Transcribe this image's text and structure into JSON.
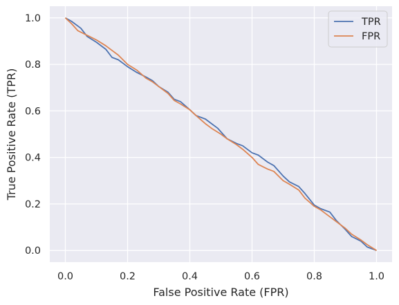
{
  "chart_data": {
    "type": "line",
    "title": "",
    "xlabel": "False Positive Rate (FPR)",
    "ylabel": "True Positive Rate (TPR)",
    "xlim": [
      -0.05,
      1.05
    ],
    "ylim": [
      -0.05,
      1.05
    ],
    "x_ticks": [
      0.0,
      0.2,
      0.4,
      0.6,
      0.8,
      1.0
    ],
    "y_ticks": [
      0.0,
      0.2,
      0.4,
      0.6,
      0.8,
      1.0
    ],
    "x_tick_labels": [
      "0.0",
      "0.2",
      "0.4",
      "0.6",
      "0.8",
      "1.0"
    ],
    "y_tick_labels": [
      "0.0",
      "0.2",
      "0.4",
      "0.6",
      "0.8",
      "1.0"
    ],
    "grid": true,
    "legend_position": "top-right",
    "background": "#eaeaf2",
    "series": [
      {
        "name": "TPR",
        "color": "#4c72b0",
        "x": [
          0.0,
          0.02,
          0.05,
          0.07,
          0.1,
          0.13,
          0.15,
          0.17,
          0.2,
          0.23,
          0.26,
          0.28,
          0.3,
          0.33,
          0.35,
          0.37,
          0.4,
          0.42,
          0.45,
          0.47,
          0.49,
          0.52,
          0.55,
          0.57,
          0.6,
          0.62,
          0.65,
          0.67,
          0.7,
          0.72,
          0.75,
          0.77,
          0.8,
          0.82,
          0.85,
          0.87,
          0.9,
          0.92,
          0.95,
          0.97,
          1.0
        ],
        "y": [
          1.0,
          0.985,
          0.955,
          0.92,
          0.895,
          0.865,
          0.83,
          0.82,
          0.79,
          0.765,
          0.745,
          0.73,
          0.705,
          0.68,
          0.65,
          0.64,
          0.605,
          0.58,
          0.565,
          0.545,
          0.525,
          0.48,
          0.46,
          0.45,
          0.42,
          0.41,
          0.38,
          0.365,
          0.32,
          0.295,
          0.275,
          0.245,
          0.195,
          0.18,
          0.165,
          0.13,
          0.09,
          0.06,
          0.04,
          0.015,
          0.0
        ]
      },
      {
        "name": "FPR",
        "color": "#dd8452",
        "x": [
          0.0,
          0.02,
          0.04,
          0.07,
          0.1,
          0.13,
          0.15,
          0.17,
          0.2,
          0.23,
          0.26,
          0.28,
          0.3,
          0.33,
          0.35,
          0.37,
          0.4,
          0.42,
          0.45,
          0.47,
          0.5,
          0.52,
          0.55,
          0.57,
          0.6,
          0.62,
          0.65,
          0.67,
          0.7,
          0.72,
          0.75,
          0.77,
          0.8,
          0.82,
          0.85,
          0.87,
          0.9,
          0.92,
          0.95,
          0.97,
          1.0
        ],
        "y": [
          1.0,
          0.975,
          0.945,
          0.925,
          0.905,
          0.88,
          0.86,
          0.84,
          0.8,
          0.775,
          0.74,
          0.725,
          0.705,
          0.675,
          0.645,
          0.63,
          0.605,
          0.58,
          0.545,
          0.525,
          0.5,
          0.48,
          0.455,
          0.435,
          0.4,
          0.37,
          0.35,
          0.34,
          0.3,
          0.285,
          0.26,
          0.225,
          0.19,
          0.175,
          0.145,
          0.125,
          0.095,
          0.07,
          0.045,
          0.025,
          0.0
        ]
      }
    ]
  }
}
